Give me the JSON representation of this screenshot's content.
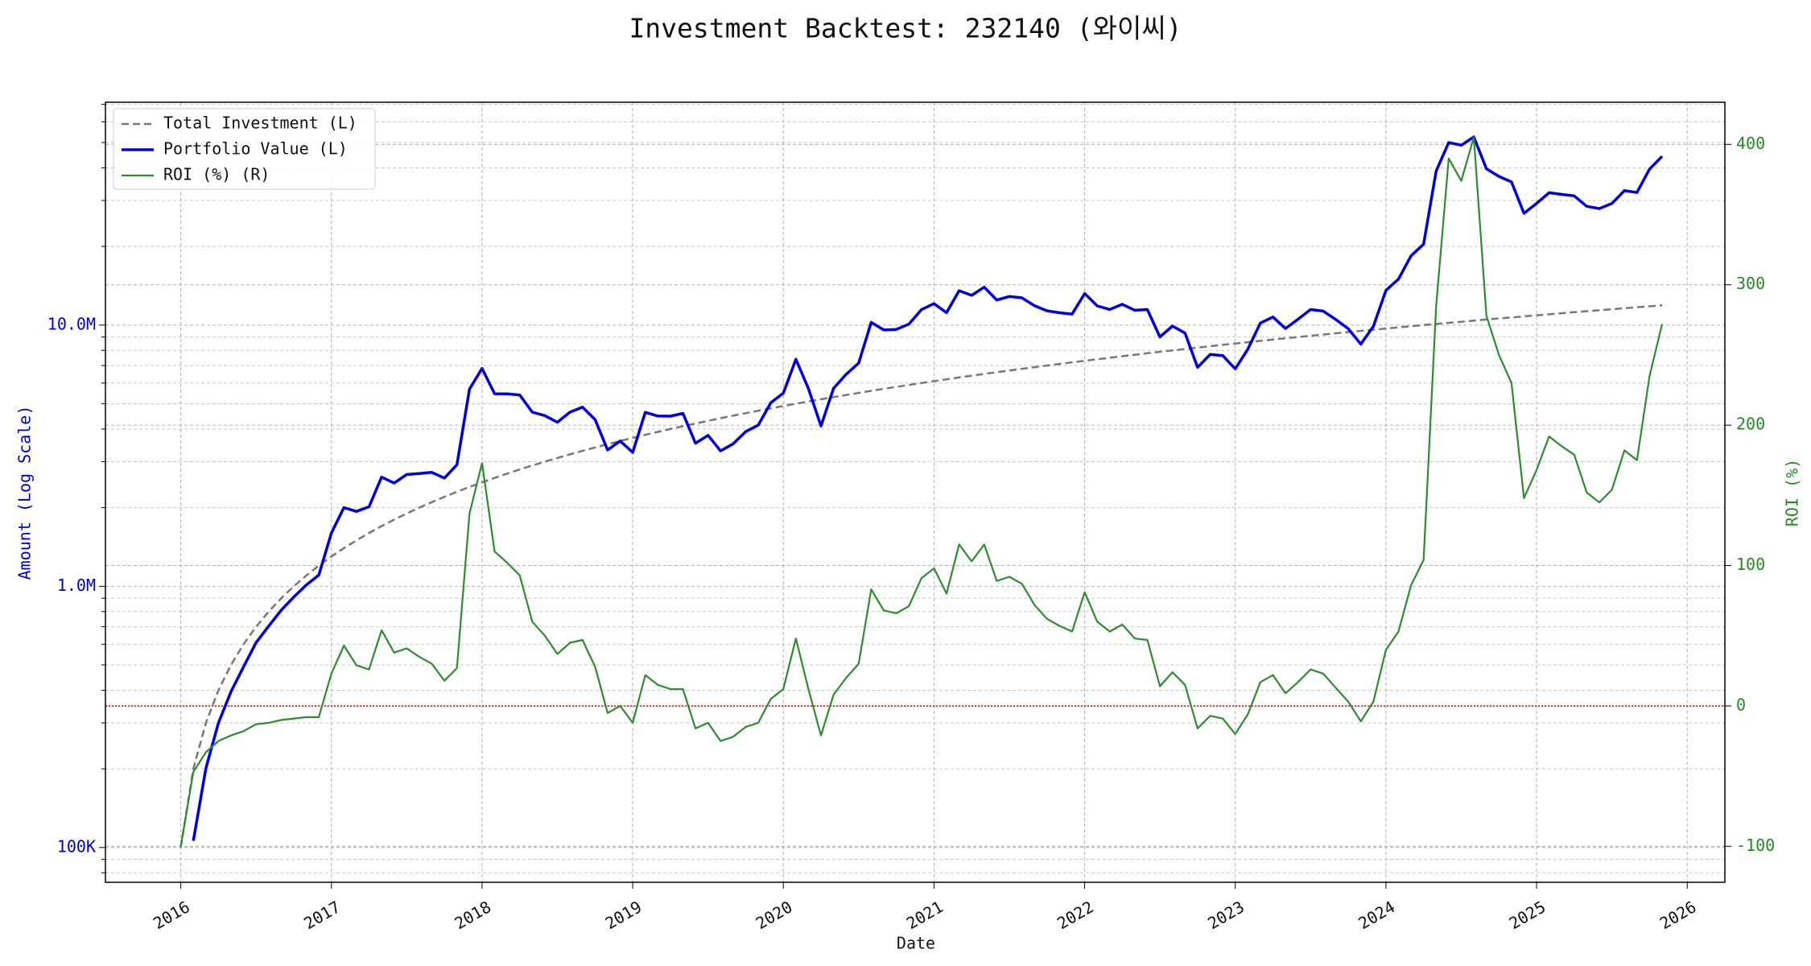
{
  "chart_data": {
    "type": "line",
    "title": "Investment Backtest: 232140 (와이씨)",
    "xlabel": "Date",
    "ylabel": "Amount (Log Scale)",
    "y2label": "ROI (%)",
    "ylabel_color": "#0000cc",
    "y2label_color": "#228b22",
    "yscale": "log",
    "grid": true,
    "legend": "upper left",
    "y2_reference_line": 0,
    "y2_reference_color": "#dd0000",
    "xlim": [
      "2015-07",
      "2026-04"
    ],
    "xticks": [
      "2016",
      "2017",
      "2018",
      "2019",
      "2020",
      "2021",
      "2022",
      "2023",
      "2024",
      "2025",
      "2026"
    ],
    "ylim": [
      73600,
      71300000
    ],
    "yticks": [
      {
        "value": 100000,
        "label": "100K"
      },
      {
        "value": 1000000,
        "label": "1.0M"
      },
      {
        "value": 10000000,
        "label": "10.0M"
      }
    ],
    "y2lim": [
      -125.6,
      430
    ],
    "y2ticks": [
      -100,
      0,
      100,
      200,
      300,
      400
    ],
    "x": [
      "2016-01",
      "2016-02",
      "2016-03",
      "2016-04",
      "2016-05",
      "2016-06",
      "2016-07",
      "2016-08",
      "2016-09",
      "2016-10",
      "2016-11",
      "2016-12",
      "2017-01",
      "2017-02",
      "2017-03",
      "2017-04",
      "2017-05",
      "2017-06",
      "2017-07",
      "2017-08",
      "2017-09",
      "2017-10",
      "2017-11",
      "2017-12",
      "2018-01",
      "2018-02",
      "2018-03",
      "2018-04",
      "2018-05",
      "2018-06",
      "2018-07",
      "2018-08",
      "2018-09",
      "2018-10",
      "2018-11",
      "2018-12",
      "2019-01",
      "2019-02",
      "2019-03",
      "2019-04",
      "2019-05",
      "2019-06",
      "2019-07",
      "2019-08",
      "2019-09",
      "2019-10",
      "2019-11",
      "2019-12",
      "2020-01",
      "2020-02",
      "2020-03",
      "2020-04",
      "2020-05",
      "2020-06",
      "2020-07",
      "2020-08",
      "2020-09",
      "2020-10",
      "2020-11",
      "2020-12",
      "2021-01",
      "2021-02",
      "2021-03",
      "2021-04",
      "2021-05",
      "2021-06",
      "2021-07",
      "2021-08",
      "2021-09",
      "2021-10",
      "2021-11",
      "2021-12",
      "2022-01",
      "2022-02",
      "2022-03",
      "2022-04",
      "2022-05",
      "2022-06",
      "2022-07",
      "2022-08",
      "2022-09",
      "2022-10",
      "2022-11",
      "2022-12",
      "2023-01",
      "2023-02",
      "2023-03",
      "2023-04",
      "2023-05",
      "2023-06",
      "2023-07",
      "2023-08",
      "2023-09",
      "2023-10",
      "2023-11",
      "2023-12",
      "2024-01",
      "2024-02",
      "2024-03",
      "2024-04",
      "2024-05",
      "2024-06",
      "2024-07",
      "2024-08",
      "2024-09",
      "2024-10",
      "2024-11",
      "2024-12",
      "2025-01",
      "2025-02",
      "2025-03",
      "2025-04",
      "2025-05",
      "2025-06",
      "2025-07",
      "2025-08",
      "2025-09",
      "2025-10",
      "2025-11"
    ],
    "series": [
      {
        "name": "Total Investment (L)",
        "color": "#777777",
        "linestyle": "dashed",
        "axis": "y",
        "values": [
          100000,
          200000,
          300000,
          400000,
          500000,
          600000,
          700000,
          800000,
          900000,
          1000000,
          1100000,
          1200000,
          1300000,
          1400000,
          1500000,
          1600000,
          1700000,
          1800000,
          1900000,
          2000000,
          2100000,
          2200000,
          2300000,
          2400000,
          2500000,
          2600000,
          2700000,
          2800000,
          2900000,
          3000000,
          3100000,
          3200000,
          3300000,
          3400000,
          3500000,
          3600000,
          3700000,
          3800000,
          3900000,
          4000000,
          4100000,
          4200000,
          4300000,
          4400000,
          4500000,
          4600000,
          4700000,
          4800000,
          4900000,
          5000000,
          5100000,
          5200000,
          5300000,
          5400000,
          5500000,
          5600000,
          5700000,
          5800000,
          5900000,
          6000000,
          6100000,
          6200000,
          6300000,
          6400000,
          6500000,
          6600000,
          6700000,
          6800000,
          6900000,
          7000000,
          7100000,
          7200000,
          7300000,
          7400000,
          7500000,
          7600000,
          7700000,
          7800000,
          7900000,
          8000000,
          8100000,
          8200000,
          8300000,
          8400000,
          8500000,
          8600000,
          8700000,
          8800000,
          8900000,
          9000000,
          9100000,
          9200000,
          9300000,
          9400000,
          9500000,
          9600000,
          9700000,
          9800000,
          9900000,
          10000000,
          10100000,
          10200000,
          10300000,
          10400000,
          10500000,
          10600000,
          10700000,
          10800000,
          10900000,
          11000000,
          11100000,
          11200000,
          11300000,
          11400000,
          11500000,
          11600000,
          11700000,
          11800000,
          11900000
        ]
      },
      {
        "name": "Portfolio Value (L)",
        "color": "#0000dd",
        "linestyle": "solid",
        "linewidth": 3.5,
        "axis": "y",
        "values": [
          null,
          106000,
          201000,
          300000,
          395000,
          492000,
          609000,
          704000,
          810000,
          910000,
          1012000,
          1104000,
          1599000,
          2002000,
          1935000,
          2016000,
          2618000,
          2484000,
          2679000,
          2700000,
          2730000,
          2596000,
          2921000,
          5688000,
          6825000,
          5460000,
          5454000,
          5404000,
          4640000,
          4500000,
          4247000,
          4640000,
          4851000,
          4352000,
          3325000,
          3600000,
          3256000,
          4636000,
          4485000,
          4480000,
          4592000,
          3528000,
          3784000,
          3300000,
          3510000,
          3910000,
          4136000,
          5040000,
          5488000,
          7400000,
          5712000,
          4108000,
          5724000,
          6480000,
          7150000,
          10248000,
          9576000,
          9628000,
          10089000,
          11460000,
          12078000,
          11160000,
          13545000,
          12992000,
          13975000,
          12474000,
          12864000,
          12716000,
          11868000,
          11340000,
          11147000,
          11016000,
          13213000,
          11840000,
          11475000,
          12008000,
          11396000,
          11466000,
          9006000,
          9920000,
          9315000,
          6888000,
          7719000,
          7644000,
          6800000,
          8084000,
          10179000,
          10736000,
          9701000,
          10530000,
          11466000,
          11316000,
          10509000,
          9682000,
          8455000,
          9888000,
          13580000,
          14994000,
          18414000,
          20400000,
          38885000,
          49980000,
          48822000,
          52520000,
          39690000,
          37100000,
          35310000,
          26784000,
          29212000,
          32120000,
          31635000,
          31248000,
          28476000,
          27930000,
          29210000,
          32712000,
          32175000,
          39530000,
          44268000
        ]
      },
      {
        "name": "ROI (%) (R)",
        "color": "#2e8b2e",
        "linestyle": "solid",
        "linewidth": 2.2,
        "axis": "y2",
        "values": [
          -100,
          -47,
          -33,
          -25,
          -21,
          -18,
          -13,
          -12,
          -10,
          -9,
          -8,
          -8,
          23,
          43,
          29,
          26,
          54,
          38,
          41,
          35,
          30,
          18,
          27,
          137,
          173,
          110,
          102,
          93,
          60,
          50,
          37,
          45,
          47,
          28,
          -5,
          0,
          -12,
          22,
          15,
          12,
          12,
          -16,
          -12,
          -25,
          -22,
          -15,
          -12,
          5,
          12,
          48,
          12,
          -21,
          8,
          20,
          30,
          83,
          68,
          66,
          71,
          91,
          98,
          80,
          115,
          103,
          115,
          89,
          92,
          87,
          72,
          62,
          57,
          53,
          81,
          60,
          53,
          58,
          48,
          47,
          14,
          24,
          15,
          -16,
          -7,
          -9,
          -20,
          -6,
          17,
          22,
          9,
          17,
          26,
          23,
          13,
          3,
          -11,
          3,
          40,
          53,
          86,
          104,
          285,
          390,
          374,
          405,
          278,
          250,
          230,
          148,
          168,
          192,
          185,
          179,
          152,
          145,
          154,
          182,
          175,
          235,
          272
        ]
      }
    ]
  }
}
